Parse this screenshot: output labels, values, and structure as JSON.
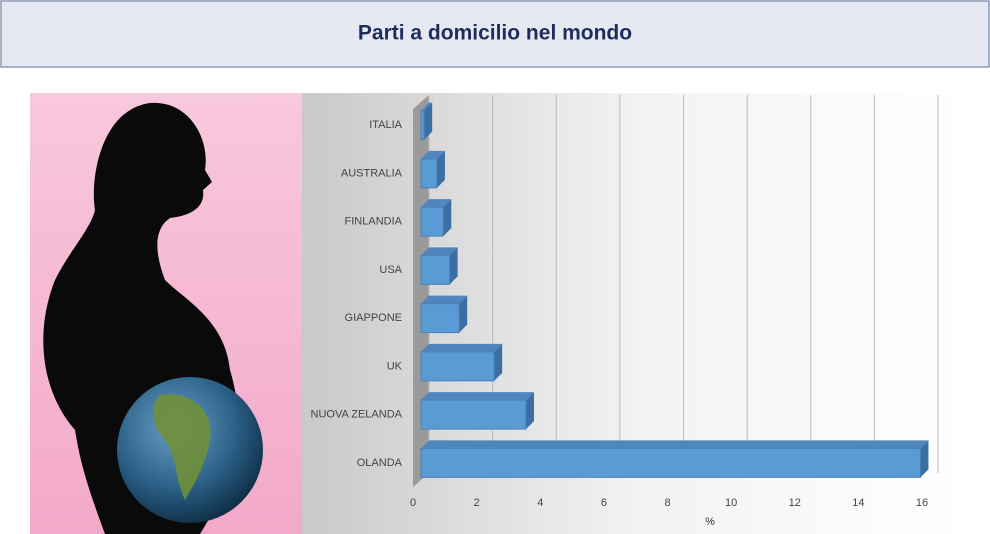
{
  "chart_data": {
    "type": "bar",
    "orientation": "horizontal",
    "title": "Parti a domicilio nel mondo",
    "categories": [
      "ITALIA",
      "AUSTRALIA",
      "FINLANDIA",
      "USA",
      "GIAPPONE",
      "UK",
      "NUOVA ZELANDA",
      "OLANDA"
    ],
    "values": [
      0.1,
      0.5,
      0.7,
      0.9,
      1.2,
      2.3,
      3.3,
      15.7
    ],
    "color": "#5b9bd5",
    "xlabel": "%",
    "xlim": [
      0,
      16
    ],
    "xticks": [
      0,
      2,
      4,
      6,
      8,
      10,
      12,
      14,
      16
    ],
    "grid": true
  }
}
